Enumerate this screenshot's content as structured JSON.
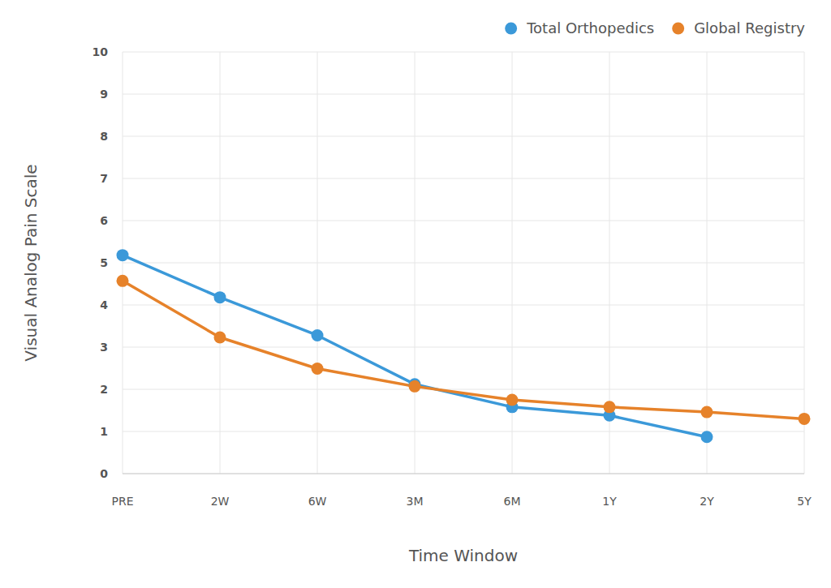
{
  "chart_data": {
    "type": "line",
    "x_label": "Time Window",
    "y_label": "Visual Analog Pain Scale",
    "categories": [
      "PRE",
      "2W",
      "6W",
      "3M",
      "6M",
      "1Y",
      "2Y",
      "5Y"
    ],
    "series": [
      {
        "name": "Total Orthopedics",
        "color": "#3b99d9",
        "marker": "circle",
        "values": [
          5.18,
          4.18,
          3.28,
          2.12,
          1.58,
          1.38,
          0.87,
          null
        ]
      },
      {
        "name": "Global Registry",
        "color": "#e6822a",
        "marker": "circle",
        "values": [
          4.57,
          3.23,
          2.49,
          2.07,
          1.75,
          1.58,
          1.46,
          1.3
        ]
      }
    ],
    "ylim": [
      0,
      10
    ],
    "yticks": [
      0,
      1,
      2,
      3,
      4,
      5,
      6,
      7,
      8,
      9,
      10
    ],
    "grid": true,
    "legend": "top-right"
  }
}
